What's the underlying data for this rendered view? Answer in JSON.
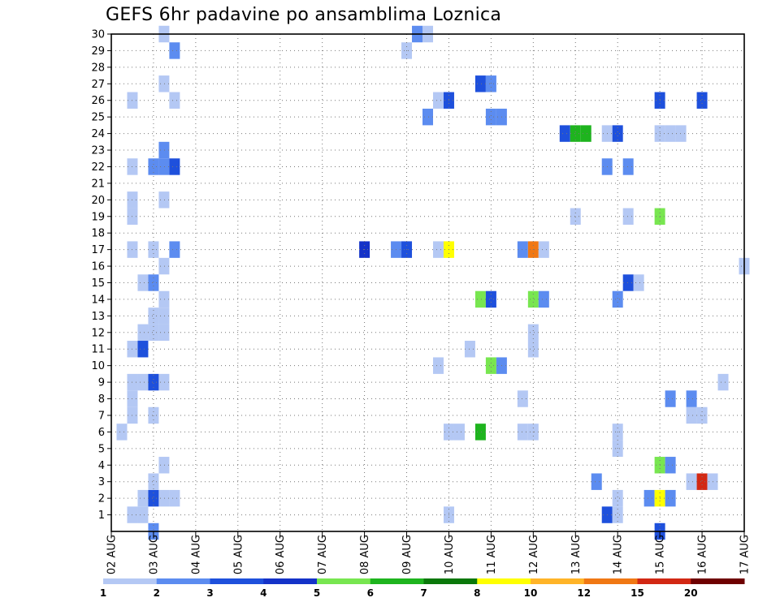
{
  "chart_data": {
    "type": "heatmap",
    "title": "GEFS 6hr padavine po ansamblima Loznica",
    "xlabel": "",
    "ylabel": "",
    "x_ticks": [
      "02 AUG",
      "03 AUG",
      "04 AUG",
      "05 AUG",
      "06 AUG",
      "07 AUG",
      "08 AUG",
      "09 AUG",
      "10 AUG",
      "11 AUG",
      "12 AUG",
      "13 AUG",
      "14 AUG",
      "15 AUG",
      "16 AUG",
      "17 AUG"
    ],
    "y_ticks": [
      1,
      2,
      3,
      4,
      5,
      6,
      7,
      8,
      9,
      10,
      11,
      12,
      13,
      14,
      15,
      16,
      17,
      18,
      19,
      20,
      21,
      22,
      23,
      24,
      25,
      26,
      27,
      28,
      29,
      30
    ],
    "x_step_hours": 6,
    "x_range_steps": [
      0,
      60
    ],
    "y_range": [
      0,
      30
    ],
    "grid": true,
    "colorbar": {
      "labels": [
        "1",
        "2",
        "3",
        "4",
        "5",
        "6",
        "7",
        "8",
        "10",
        "12",
        "15",
        "20"
      ],
      "colors": [
        "#b4c8f4",
        "#5c8cf0",
        "#1e50dc",
        "#1432c8",
        "#78e650",
        "#1eb41e",
        "#0a780a",
        "#ffff00",
        "#ffb428",
        "#f07814",
        "#d22814",
        "#6e0000"
      ]
    },
    "cells": [
      {
        "t": 1,
        "m": 6,
        "c": 1
      },
      {
        "t": 2,
        "m": 1,
        "c": 1
      },
      {
        "t": 2,
        "m": 7,
        "c": 1
      },
      {
        "t": 2,
        "m": 8,
        "c": 1
      },
      {
        "t": 2,
        "m": 9,
        "c": 1
      },
      {
        "t": 2,
        "m": 11,
        "c": 1
      },
      {
        "t": 2,
        "m": 17,
        "c": 1
      },
      {
        "t": 2,
        "m": 19,
        "c": 1
      },
      {
        "t": 2,
        "m": 20,
        "c": 1
      },
      {
        "t": 2,
        "m": 22,
        "c": 1
      },
      {
        "t": 2,
        "m": 26,
        "c": 1
      },
      {
        "t": 3,
        "m": 1,
        "c": 1
      },
      {
        "t": 3,
        "m": 2,
        "c": 1
      },
      {
        "t": 3,
        "m": 9,
        "c": 1
      },
      {
        "t": 3,
        "m": 11,
        "c": 3
      },
      {
        "t": 3,
        "m": 12,
        "c": 1
      },
      {
        "t": 3,
        "m": 15,
        "c": 1
      },
      {
        "t": 4,
        "m": 0,
        "c": 2
      },
      {
        "t": 4,
        "m": 2,
        "c": 3
      },
      {
        "t": 4,
        "m": 3,
        "c": 1
      },
      {
        "t": 4,
        "m": 7,
        "c": 1
      },
      {
        "t": 4,
        "m": 9,
        "c": 3
      },
      {
        "t": 4,
        "m": 12,
        "c": 1
      },
      {
        "t": 4,
        "m": 13,
        "c": 1
      },
      {
        "t": 4,
        "m": 15,
        "c": 2
      },
      {
        "t": 4,
        "m": 17,
        "c": 1
      },
      {
        "t": 4,
        "m": 22,
        "c": 2
      },
      {
        "t": 5,
        "m": 2,
        "c": 1
      },
      {
        "t": 5,
        "m": 4,
        "c": 1
      },
      {
        "t": 5,
        "m": 9,
        "c": 1
      },
      {
        "t": 5,
        "m": 12,
        "c": 1
      },
      {
        "t": 5,
        "m": 13,
        "c": 1
      },
      {
        "t": 5,
        "m": 14,
        "c": 1
      },
      {
        "t": 5,
        "m": 16,
        "c": 1
      },
      {
        "t": 5,
        "m": 20,
        "c": 1
      },
      {
        "t": 5,
        "m": 22,
        "c": 2
      },
      {
        "t": 5,
        "m": 23,
        "c": 2
      },
      {
        "t": 5,
        "m": 27,
        "c": 1
      },
      {
        "t": 5,
        "m": 30,
        "c": 1
      },
      {
        "t": 6,
        "m": 2,
        "c": 1
      },
      {
        "t": 6,
        "m": 17,
        "c": 2
      },
      {
        "t": 6,
        "m": 22,
        "c": 3
      },
      {
        "t": 6,
        "m": 26,
        "c": 1
      },
      {
        "t": 6,
        "m": 29,
        "c": 2
      },
      {
        "t": 24,
        "m": 17,
        "c": 4
      },
      {
        "t": 27,
        "m": 17,
        "c": 2
      },
      {
        "t": 28,
        "m": 17,
        "c": 3
      },
      {
        "t": 28,
        "m": 29,
        "c": 1
      },
      {
        "t": 29,
        "m": 30,
        "c": 2
      },
      {
        "t": 30,
        "m": 25,
        "c": 2
      },
      {
        "t": 30,
        "m": 30,
        "c": 1
      },
      {
        "t": 31,
        "m": 10,
        "c": 1
      },
      {
        "t": 31,
        "m": 17,
        "c": 1
      },
      {
        "t": 31,
        "m": 26,
        "c": 1
      },
      {
        "t": 32,
        "m": 1,
        "c": 1
      },
      {
        "t": 32,
        "m": 6,
        "c": 1
      },
      {
        "t": 32,
        "m": 17,
        "c": 8
      },
      {
        "t": 32,
        "m": 26,
        "c": 3
      },
      {
        "t": 33,
        "m": 6,
        "c": 1
      },
      {
        "t": 34,
        "m": 11,
        "c": 1
      },
      {
        "t": 35,
        "m": 6,
        "c": 6
      },
      {
        "t": 35,
        "m": 14,
        "c": 5
      },
      {
        "t": 35,
        "m": 27,
        "c": 3
      },
      {
        "t": 36,
        "m": 10,
        "c": 5
      },
      {
        "t": 36,
        "m": 14,
        "c": 3
      },
      {
        "t": 36,
        "m": 25,
        "c": 2
      },
      {
        "t": 36,
        "m": 27,
        "c": 2
      },
      {
        "t": 37,
        "m": 10,
        "c": 2
      },
      {
        "t": 37,
        "m": 25,
        "c": 2
      },
      {
        "t": 39,
        "m": 6,
        "c": 1
      },
      {
        "t": 39,
        "m": 8,
        "c": 1
      },
      {
        "t": 39,
        "m": 17,
        "c": 2
      },
      {
        "t": 40,
        "m": 6,
        "c": 1
      },
      {
        "t": 40,
        "m": 11,
        "c": 1
      },
      {
        "t": 40,
        "m": 12,
        "c": 1
      },
      {
        "t": 40,
        "m": 14,
        "c": 5
      },
      {
        "t": 40,
        "m": 17,
        "c": 10
      },
      {
        "t": 41,
        "m": 14,
        "c": 2
      },
      {
        "t": 41,
        "m": 17,
        "c": 1
      },
      {
        "t": 43,
        "m": 24,
        "c": 3
      },
      {
        "t": 44,
        "m": 19,
        "c": 1
      },
      {
        "t": 44,
        "m": 24,
        "c": 6
      },
      {
        "t": 45,
        "m": 24,
        "c": 6
      },
      {
        "t": 46,
        "m": 3,
        "c": 2
      },
      {
        "t": 47,
        "m": 1,
        "c": 3
      },
      {
        "t": 47,
        "m": 22,
        "c": 2
      },
      {
        "t": 47,
        "m": 24,
        "c": 1
      },
      {
        "t": 48,
        "m": 1,
        "c": 1
      },
      {
        "t": 48,
        "m": 2,
        "c": 1
      },
      {
        "t": 48,
        "m": 5,
        "c": 1
      },
      {
        "t": 48,
        "m": 6,
        "c": 1
      },
      {
        "t": 48,
        "m": 14,
        "c": 2
      },
      {
        "t": 48,
        "m": 24,
        "c": 3
      },
      {
        "t": 49,
        "m": 15,
        "c": 3
      },
      {
        "t": 49,
        "m": 19,
        "c": 1
      },
      {
        "t": 49,
        "m": 22,
        "c": 2
      },
      {
        "t": 50,
        "m": 15,
        "c": 1
      },
      {
        "t": 51,
        "m": 2,
        "c": 2
      },
      {
        "t": 52,
        "m": 0,
        "c": 3
      },
      {
        "t": 52,
        "m": 2,
        "c": 8
      },
      {
        "t": 52,
        "m": 4,
        "c": 5
      },
      {
        "t": 52,
        "m": 19,
        "c": 5
      },
      {
        "t": 52,
        "m": 24,
        "c": 1
      },
      {
        "t": 52,
        "m": 26,
        "c": 3
      },
      {
        "t": 53,
        "m": 2,
        "c": 2
      },
      {
        "t": 53,
        "m": 4,
        "c": 2
      },
      {
        "t": 53,
        "m": 8,
        "c": 2
      },
      {
        "t": 53,
        "m": 24,
        "c": 1
      },
      {
        "t": 54,
        "m": 24,
        "c": 1
      },
      {
        "t": 55,
        "m": 3,
        "c": 1
      },
      {
        "t": 55,
        "m": 7,
        "c": 1
      },
      {
        "t": 55,
        "m": 8,
        "c": 2
      },
      {
        "t": 56,
        "m": 3,
        "c": 11
      },
      {
        "t": 56,
        "m": 7,
        "c": 1
      },
      {
        "t": 56,
        "m": 26,
        "c": 3
      },
      {
        "t": 57,
        "m": 3,
        "c": 1
      },
      {
        "t": 58,
        "m": 9,
        "c": 1
      },
      {
        "t": 60,
        "m": 16,
        "c": 1
      }
    ]
  }
}
